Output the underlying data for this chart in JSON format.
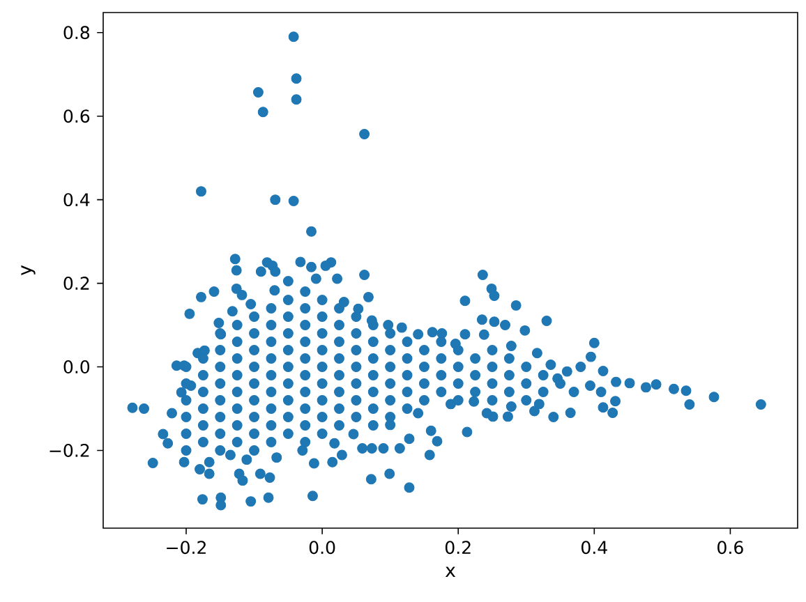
{
  "chart_data": {
    "type": "scatter",
    "xlabel": "x",
    "ylabel": "y",
    "color": "#1f77b4",
    "marker": "circle",
    "xlim": [
      -0.322,
      0.699
    ],
    "ylim": [
      -0.386,
      0.848
    ],
    "xticks": [
      {
        "value": -0.2,
        "label": "−0.2"
      },
      {
        "value": 0,
        "label": "0.0"
      },
      {
        "value": 0.2,
        "label": "0.2"
      },
      {
        "value": 0.4,
        "label": "0.4"
      },
      {
        "value": 0.6,
        "label": "0.6"
      }
    ],
    "yticks": [
      {
        "value": -0.2,
        "label": "−0.2"
      },
      {
        "value": 0,
        "label": "0.0"
      },
      {
        "value": 0.2,
        "label": "0.2"
      },
      {
        "value": 0.4,
        "label": "0.4"
      },
      {
        "value": 0.6,
        "label": "0.6"
      },
      {
        "value": 0.8,
        "label": "0.8"
      }
    ],
    "x": [
      -0.042,
      -0.038,
      -0.094,
      -0.038,
      -0.087,
      0.062,
      -0.178,
      -0.069,
      -0.042,
      -0.016,
      -0.128,
      -0.126,
      -0.081,
      -0.073,
      -0.09,
      -0.069,
      -0.032,
      -0.016,
      0.013,
      0.005,
      0.062,
      0.022,
      -0.178,
      -0.159,
      -0.195,
      0.068,
      -0.126,
      -0.118,
      -0.152,
      -0.132,
      -0.105,
      -0.07,
      -0.05,
      -0.009,
      0.032,
      0.053,
      0.073,
      0.097,
      0.117,
      0.141,
      0.162,
      0.176,
      0.196,
      -0.214,
      -0.203,
      -0.183,
      -0.173,
      -0.149,
      -0.207,
      -0.193,
      -0.279,
      -0.262,
      -0.221,
      -0.234,
      -0.227,
      -0.249,
      -0.203,
      -0.18,
      -0.166,
      -0.176,
      -0.149,
      -0.149,
      -0.105,
      -0.079,
      -0.014,
      -0.122,
      -0.117,
      -0.091,
      -0.077,
      -0.012,
      0.015,
      0.072,
      0.099,
      0.128,
      0.158,
      0.169,
      0.16,
      0.114,
      0.128,
      0.059,
      0.073,
      0.09,
      0.029,
      0.018,
      -0.029,
      -0.067,
      -0.111,
      -0.135,
      -0.166,
      -0.2,
      0.046,
      0.1,
      0.141,
      0.189,
      0.236,
      0.249,
      0.253,
      0.21,
      0.285,
      0.235,
      0.253,
      0.269,
      0.33,
      0.298,
      0.238,
      0.4,
      0.395,
      0.413,
      0.432,
      0.452,
      0.476,
      0.491,
      0.517,
      0.535,
      0.54,
      0.576,
      0.645,
      0.431,
      0.427,
      0.413,
      0.365,
      0.34,
      0.312,
      0.273,
      0.251,
      0.242,
      0.213,
      0.38,
      0.36,
      0.346,
      0.394,
      0.21,
      0.278,
      0.316,
      0.336,
      0.223,
      0.278,
      0.319,
      0.37,
      0.41,
      -0.2,
      -0.2,
      -0.2,
      -0.2,
      -0.2,
      -0.175,
      -0.175,
      -0.175,
      -0.175,
      -0.175,
      -0.175,
      -0.15,
      -0.15,
      -0.15,
      -0.15,
      -0.15,
      -0.15,
      -0.15,
      -0.15,
      -0.125,
      -0.125,
      -0.125,
      -0.125,
      -0.125,
      -0.125,
      -0.125,
      -0.125,
      -0.1,
      -0.1,
      -0.1,
      -0.1,
      -0.1,
      -0.1,
      -0.1,
      -0.1,
      -0.1,
      -0.075,
      -0.075,
      -0.075,
      -0.075,
      -0.075,
      -0.075,
      -0.075,
      -0.075,
      -0.075,
      -0.05,
      -0.05,
      -0.05,
      -0.05,
      -0.05,
      -0.05,
      -0.05,
      -0.05,
      -0.05,
      -0.025,
      -0.025,
      -0.025,
      -0.025,
      -0.025,
      -0.025,
      -0.025,
      -0.025,
      -0.025,
      -0.025,
      0,
      0,
      0,
      0,
      0,
      0,
      0,
      0,
      0,
      0.025,
      0.025,
      0.025,
      0.025,
      0.025,
      0.025,
      0.025,
      0.025,
      0.05,
      0.05,
      0.05,
      0.05,
      0.05,
      0.05,
      0.05,
      0.075,
      0.075,
      0.075,
      0.075,
      0.075,
      0.075,
      0.075,
      0.1,
      0.1,
      0.1,
      0.1,
      0.1,
      0.1,
      0.125,
      0.125,
      0.125,
      0.125,
      0.125,
      0.15,
      0.15,
      0.15,
      0.15,
      0.175,
      0.175,
      0.175,
      0.175,
      0.2,
      0.2,
      0.2,
      0.2,
      0.225,
      0.225,
      0.225,
      0.25,
      0.25,
      0.25,
      0.25,
      0.275,
      0.275,
      0.275,
      0.3,
      0.3,
      0.3,
      0.325,
      0.325,
      0.35
    ],
    "values": [
      0.79,
      0.69,
      0.657,
      0.64,
      0.61,
      0.557,
      0.42,
      0.4,
      0.397,
      0.324,
      0.258,
      0.231,
      0.25,
      0.242,
      0.228,
      0.228,
      0.251,
      0.239,
      0.25,
      0.242,
      0.22,
      0.211,
      0.167,
      0.18,
      0.127,
      0.167,
      0.187,
      0.172,
      0.105,
      0.133,
      0.15,
      0.183,
      0.205,
      0.211,
      0.155,
      0.139,
      0.111,
      0.1,
      0.094,
      0.078,
      0.083,
      0.08,
      0.055,
      0.003,
      0.003,
      0.033,
      0.039,
      0.078,
      -0.061,
      -0.045,
      -0.098,
      -0.1,
      -0.111,
      -0.161,
      -0.183,
      -0.23,
      -0.228,
      -0.245,
      -0.256,
      -0.317,
      -0.313,
      -0.331,
      -0.322,
      -0.313,
      -0.309,
      -0.256,
      -0.272,
      -0.256,
      -0.265,
      -0.231,
      -0.228,
      -0.269,
      -0.256,
      -0.289,
      -0.211,
      -0.178,
      -0.153,
      -0.195,
      -0.172,
      -0.195,
      -0.195,
      -0.195,
      -0.211,
      -0.183,
      -0.2,
      -0.217,
      -0.222,
      -0.211,
      -0.228,
      -0.2,
      -0.161,
      -0.139,
      -0.111,
      -0.089,
      0.22,
      0.187,
      0.17,
      0.158,
      0.147,
      0.113,
      0.108,
      0.1,
      0.11,
      0.087,
      0.077,
      0.057,
      0.024,
      -0.01,
      -0.036,
      -0.039,
      -0.049,
      -0.042,
      -0.053,
      -0.057,
      -0.09,
      -0.072,
      -0.09,
      -0.082,
      -0.11,
      -0.097,
      -0.11,
      -0.12,
      -0.106,
      -0.119,
      -0.119,
      -0.111,
      -0.156,
      0.0,
      -0.011,
      -0.028,
      -0.045,
      0.078,
      0.05,
      0.033,
      0.005,
      -0.083,
      -0.095,
      -0.089,
      -0.06,
      -0.06,
      -0.16,
      -0.12,
      -0.08,
      -0.04,
      0,
      -0.18,
      -0.14,
      -0.1,
      -0.06,
      -0.02,
      0.02,
      -0.2,
      -0.16,
      -0.12,
      -0.08,
      -0.04,
      0,
      0.04,
      0.08,
      -0.18,
      -0.14,
      -0.1,
      -0.06,
      -0.02,
      0.02,
      0.06,
      0.1,
      -0.2,
      -0.16,
      -0.12,
      -0.08,
      -0.04,
      0,
      0.04,
      0.08,
      0.12,
      -0.18,
      -0.14,
      -0.1,
      -0.06,
      -0.02,
      0.02,
      0.06,
      0.1,
      0.14,
      -0.16,
      -0.12,
      -0.08,
      -0.04,
      0,
      0.04,
      0.08,
      0.12,
      0.16,
      -0.18,
      -0.14,
      -0.1,
      -0.06,
      -0.02,
      0.02,
      0.06,
      0.1,
      0.14,
      0.18,
      -0.16,
      -0.12,
      -0.08,
      -0.04,
      0,
      0.04,
      0.08,
      0.12,
      0.16,
      -0.14,
      -0.1,
      -0.06,
      -0.02,
      0.02,
      0.06,
      0.1,
      0.14,
      -0.12,
      -0.08,
      -0.04,
      0,
      0.04,
      0.08,
      0.12,
      -0.14,
      -0.1,
      -0.06,
      -0.02,
      0.02,
      0.06,
      0.1,
      -0.12,
      -0.08,
      -0.04,
      0,
      0.04,
      0.08,
      -0.1,
      -0.06,
      -0.02,
      0.02,
      0.06,
      -0.08,
      -0.04,
      0,
      0.04,
      -0.06,
      -0.02,
      0.02,
      0.06,
      -0.08,
      -0.04,
      0,
      0.04,
      -0.06,
      -0.02,
      0.02,
      -0.08,
      -0.04,
      0,
      0.04,
      -0.06,
      -0.02,
      0.02,
      -0.08,
      -0.04,
      0,
      -0.06,
      -0.02,
      -0.04
    ]
  }
}
